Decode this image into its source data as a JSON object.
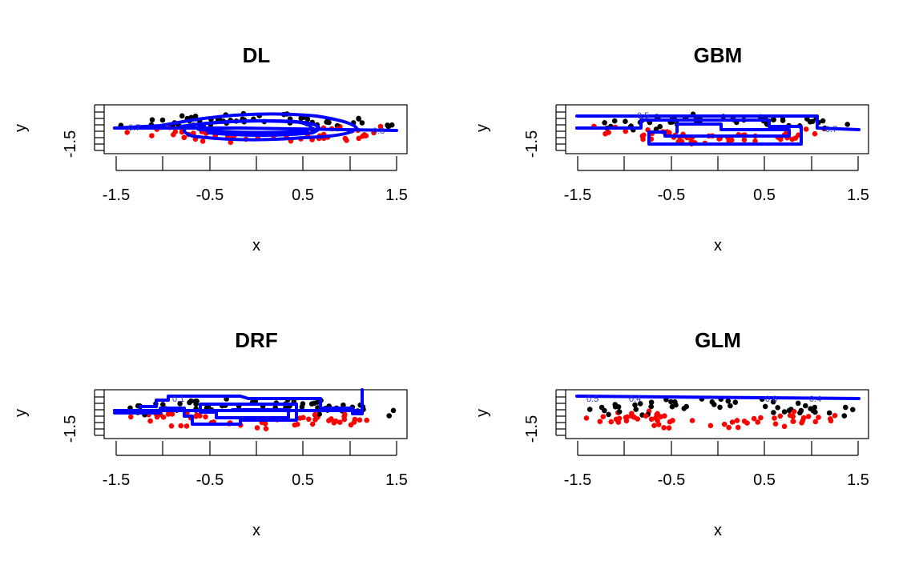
{
  "chart_data": [
    {
      "type": "scatter",
      "title": "DL",
      "xlabel": "x",
      "ylabel": "y",
      "xlim": [
        -1.5,
        1.5
      ],
      "xticks": [
        "-1.5",
        "-0.5",
        "0.5",
        "1.5"
      ],
      "ylim": [
        -1.5,
        1.5
      ],
      "yticks": [
        "-1.5"
      ],
      "point_colors": [
        "#000000",
        "#ff0000"
      ],
      "contour_color": "#0000ff",
      "contour_labels": [
        "0.7",
        "0.8"
      ]
    },
    {
      "type": "scatter",
      "title": "GBM",
      "xlabel": "x",
      "ylabel": "y",
      "xlim": [
        -1.5,
        1.5
      ],
      "xticks": [
        "-1.5",
        "-0.5",
        "0.5",
        "1.5"
      ],
      "ylim": [
        -1.5,
        1.5
      ],
      "yticks": [
        "-1.5"
      ],
      "point_colors": [
        "#000000",
        "#ff0000"
      ],
      "contour_color": "#0000ff",
      "contour_labels": [
        "0.5",
        "0.7"
      ]
    },
    {
      "type": "scatter",
      "title": "DRF",
      "xlabel": "x",
      "ylabel": "y",
      "xlim": [
        -1.5,
        1.5
      ],
      "xticks": [
        "-1.5",
        "-0.5",
        "0.5",
        "1.5"
      ],
      "ylim": [
        -1.5,
        1.5
      ],
      "yticks": [
        "-1.5"
      ],
      "point_colors": [
        "#000000",
        "#ff0000"
      ],
      "contour_color": "#0000ff",
      "contour_labels": [
        "0.1"
      ]
    },
    {
      "type": "scatter",
      "title": "GLM",
      "xlabel": "x",
      "ylabel": "y",
      "xlim": [
        -1.5,
        1.5
      ],
      "xticks": [
        "-1.5",
        "-0.5",
        "0.5",
        "1.5"
      ],
      "ylim": [
        -1.5,
        1.5
      ],
      "yticks": [
        "-1.5"
      ],
      "point_colors": [
        "#000000",
        "#ff0000"
      ],
      "contour_color": "#0000ff",
      "contour_labels": [
        "0.5",
        "0.4",
        "0.8",
        "0.4"
      ]
    }
  ]
}
